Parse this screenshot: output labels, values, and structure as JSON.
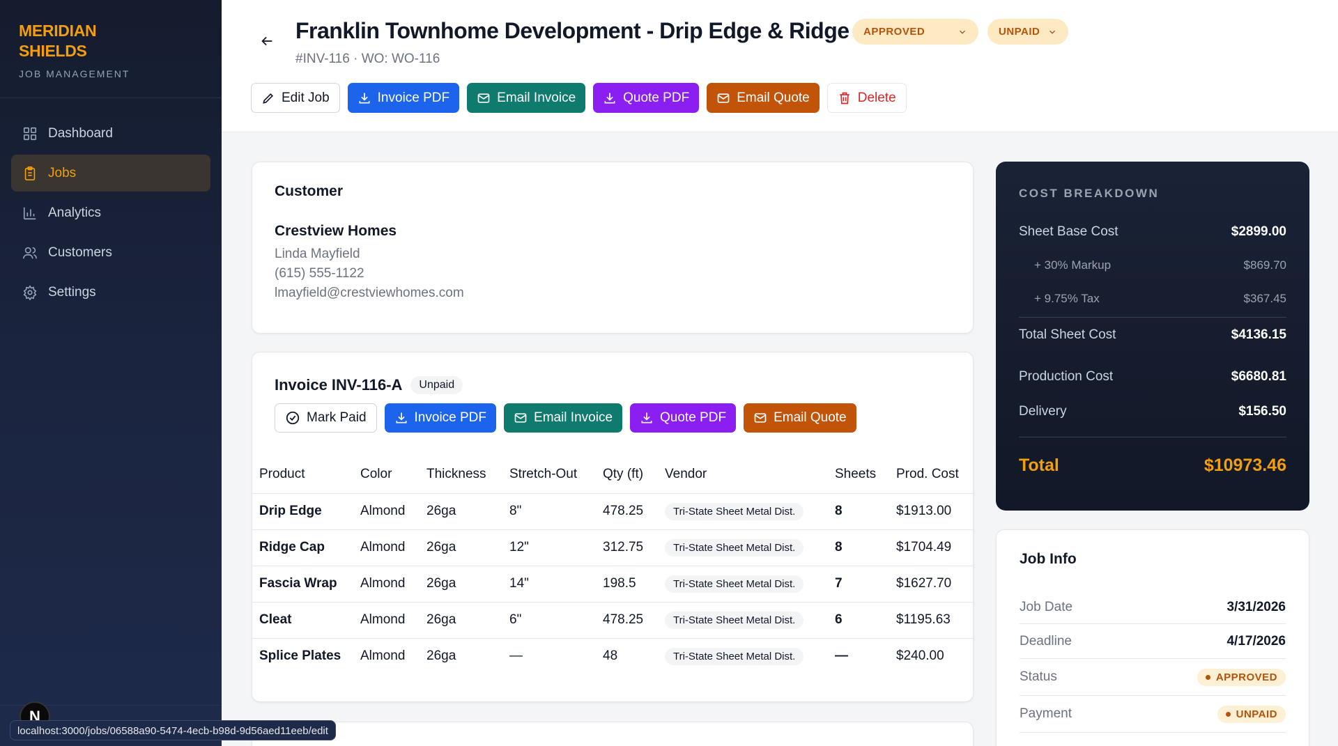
{
  "brand": {
    "name_line1": "MERIDIAN",
    "name_line2": "SHIELDS",
    "subtitle": "JOB MANAGEMENT"
  },
  "nav": [
    {
      "label": "Dashboard",
      "icon": "grid-icon"
    },
    {
      "label": "Jobs",
      "icon": "clipboard-icon",
      "active": true
    },
    {
      "label": "Analytics",
      "icon": "bar-chart-icon"
    },
    {
      "label": "Customers",
      "icon": "users-icon"
    },
    {
      "label": "Settings",
      "icon": "gear-icon"
    }
  ],
  "status_url": "localhost:3000/jobs/06588a90-5474-4ecb-b98d-9d56aed11eeb/edit",
  "next_badge": "N",
  "job": {
    "title": "Franklin Townhome Development - Drip Edge & Ridge",
    "subtitle": "#INV-116 · WO: WO-116",
    "status": "APPROVED",
    "payment": "UNPAID"
  },
  "actions": {
    "edit": "Edit Job",
    "invoice_pdf": "Invoice PDF",
    "email_invoice": "Email Invoice",
    "quote_pdf": "Quote PDF",
    "email_quote": "Email Quote",
    "delete": "Delete"
  },
  "customer": {
    "heading": "Customer",
    "company": "Crestview Homes",
    "contact": "Linda Mayfield",
    "phone": "(615) 555-1122",
    "email": "lmayfield@crestviewhomes.com"
  },
  "invoice": {
    "title": "Invoice INV-116-A",
    "badge": "Unpaid",
    "actions": {
      "mark_paid": "Mark Paid",
      "invoice_pdf": "Invoice PDF",
      "email_invoice": "Email Invoice",
      "quote_pdf": "Quote PDF",
      "email_quote": "Email Quote"
    },
    "columns": [
      "Product",
      "Color",
      "Thickness",
      "Stretch-Out",
      "Qty (ft)",
      "Vendor",
      "Sheets",
      "Prod. Cost"
    ],
    "rows": [
      [
        "Drip Edge",
        "Almond",
        "26ga",
        "8\"",
        "478.25",
        "Tri-State Sheet Metal Dist.",
        "8",
        "$1913.00"
      ],
      [
        "Ridge Cap",
        "Almond",
        "26ga",
        "12\"",
        "312.75",
        "Tri-State Sheet Metal Dist.",
        "8",
        "$1704.49"
      ],
      [
        "Fascia Wrap",
        "Almond",
        "26ga",
        "14\"",
        "198.5",
        "Tri-State Sheet Metal Dist.",
        "7",
        "$1627.70"
      ],
      [
        "Cleat",
        "Almond",
        "26ga",
        "6\"",
        "478.25",
        "Tri-State Sheet Metal Dist.",
        "6",
        "$1195.63"
      ],
      [
        "Splice Plates",
        "Almond",
        "26ga",
        "—",
        "48",
        "Tri-State Sheet Metal Dist.",
        "—",
        "$240.00"
      ]
    ]
  },
  "cost": {
    "heading": "COST BREAKDOWN",
    "sheet_base_label": "Sheet Base Cost",
    "sheet_base": "$2899.00",
    "markup_label": "+ 30% Markup",
    "markup": "$869.70",
    "tax_label": "+ 9.75% Tax",
    "tax": "$367.45",
    "total_sheet_label": "Total Sheet Cost",
    "total_sheet": "$4136.15",
    "production_label": "Production Cost",
    "production": "$6680.81",
    "delivery_label": "Delivery",
    "delivery": "$156.50",
    "total_label": "Total",
    "total": "$10973.46"
  },
  "job_info": {
    "heading": "Job Info",
    "job_date_label": "Job Date",
    "job_date": "3/31/2026",
    "deadline_label": "Deadline",
    "deadline": "4/17/2026",
    "status_label": "Status",
    "status": "APPROVED",
    "payment_label": "Payment",
    "payment": "UNPAID"
  },
  "colors": {
    "accent": "#f59e0b",
    "blue": "#1d64ec",
    "teal": "#0f7a6e",
    "purple": "#8b1ef0",
    "orange": "#c2540a",
    "danger": "#dc2626"
  }
}
